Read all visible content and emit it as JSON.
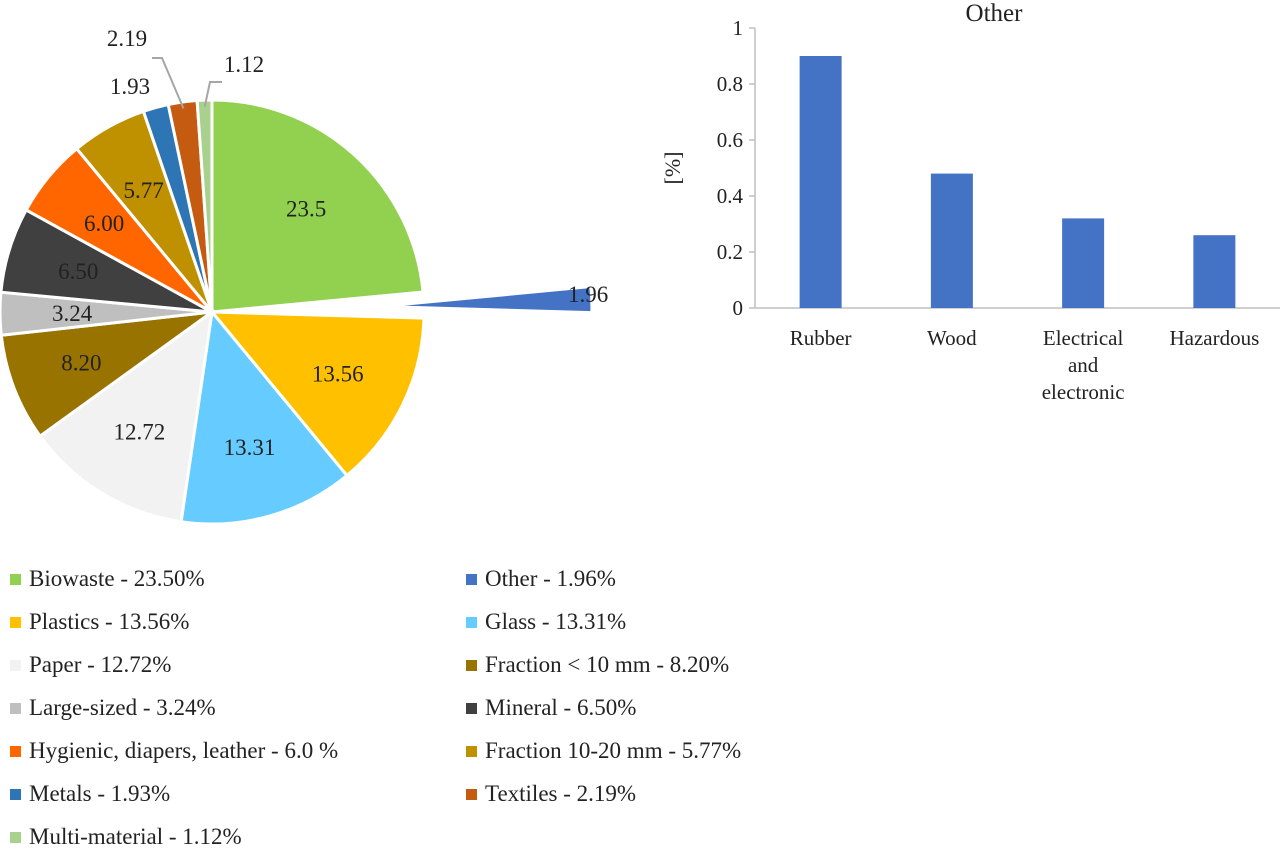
{
  "chart_data": [
    {
      "type": "pie",
      "unit": "%",
      "slices": [
        {
          "label": "23.5",
          "value": 23.5,
          "color": "#92d050",
          "name": "Biowaste - 23.50%"
        },
        {
          "label": "1.96",
          "value": 1.96,
          "color": "#4472c4",
          "name": "Other - 1.96%",
          "exploded": true
        },
        {
          "label": "13.56",
          "value": 13.56,
          "color": "#ffc000",
          "name": "Plastics - 13.56%"
        },
        {
          "label": "13.31",
          "value": 13.31,
          "color": "#66ccff",
          "name": "Glass - 13.31%"
        },
        {
          "label": "12.72",
          "value": 12.72,
          "color": "#f2f2f2",
          "name": "Paper - 12.72%"
        },
        {
          "label": "8.20",
          "value": 8.2,
          "color": "#997300",
          "name": "Fraction < 10 mm - 8.20%"
        },
        {
          "label": "3.24",
          "value": 3.24,
          "color": "#bfbfbf",
          "name": "Large-sized - 3.24%"
        },
        {
          "label": "6.50",
          "value": 6.5,
          "color": "#404040",
          "name": "Mineral - 6.50%"
        },
        {
          "label": "6.00",
          "value": 6.0,
          "color": "#ff6600",
          "name": "Hygienic, diapers, leather - 6.0 %"
        },
        {
          "label": "5.77",
          "value": 5.77,
          "color": "#bf9000",
          "name": "Fraction 10-20 mm - 5.77%"
        },
        {
          "label": "1.93",
          "value": 1.93,
          "color": "#2e75b6",
          "name": "Metals - 1.93%"
        },
        {
          "label": "2.19",
          "value": 2.19,
          "color": "#c55a11",
          "name": "Textiles - 2.19%"
        },
        {
          "label": "1.12",
          "value": 1.12,
          "color": "#a9d18e",
          "name": "Multi-material - 1.12%"
        }
      ],
      "legend_placement": "bottom"
    },
    {
      "type": "bar",
      "title": "Other",
      "categories": [
        "Rubber",
        "Wood",
        "Electrical and electronic",
        "Hazardous"
      ],
      "values": [
        0.9,
        0.48,
        0.32,
        0.26
      ],
      "ylabel": "[%]",
      "ylim": [
        0,
        1
      ],
      "yticks": [
        "0",
        "0.2",
        "0.4",
        "0.6",
        "0.8",
        "1"
      ],
      "bar_color": "#4472c4",
      "grid": false
    }
  ]
}
